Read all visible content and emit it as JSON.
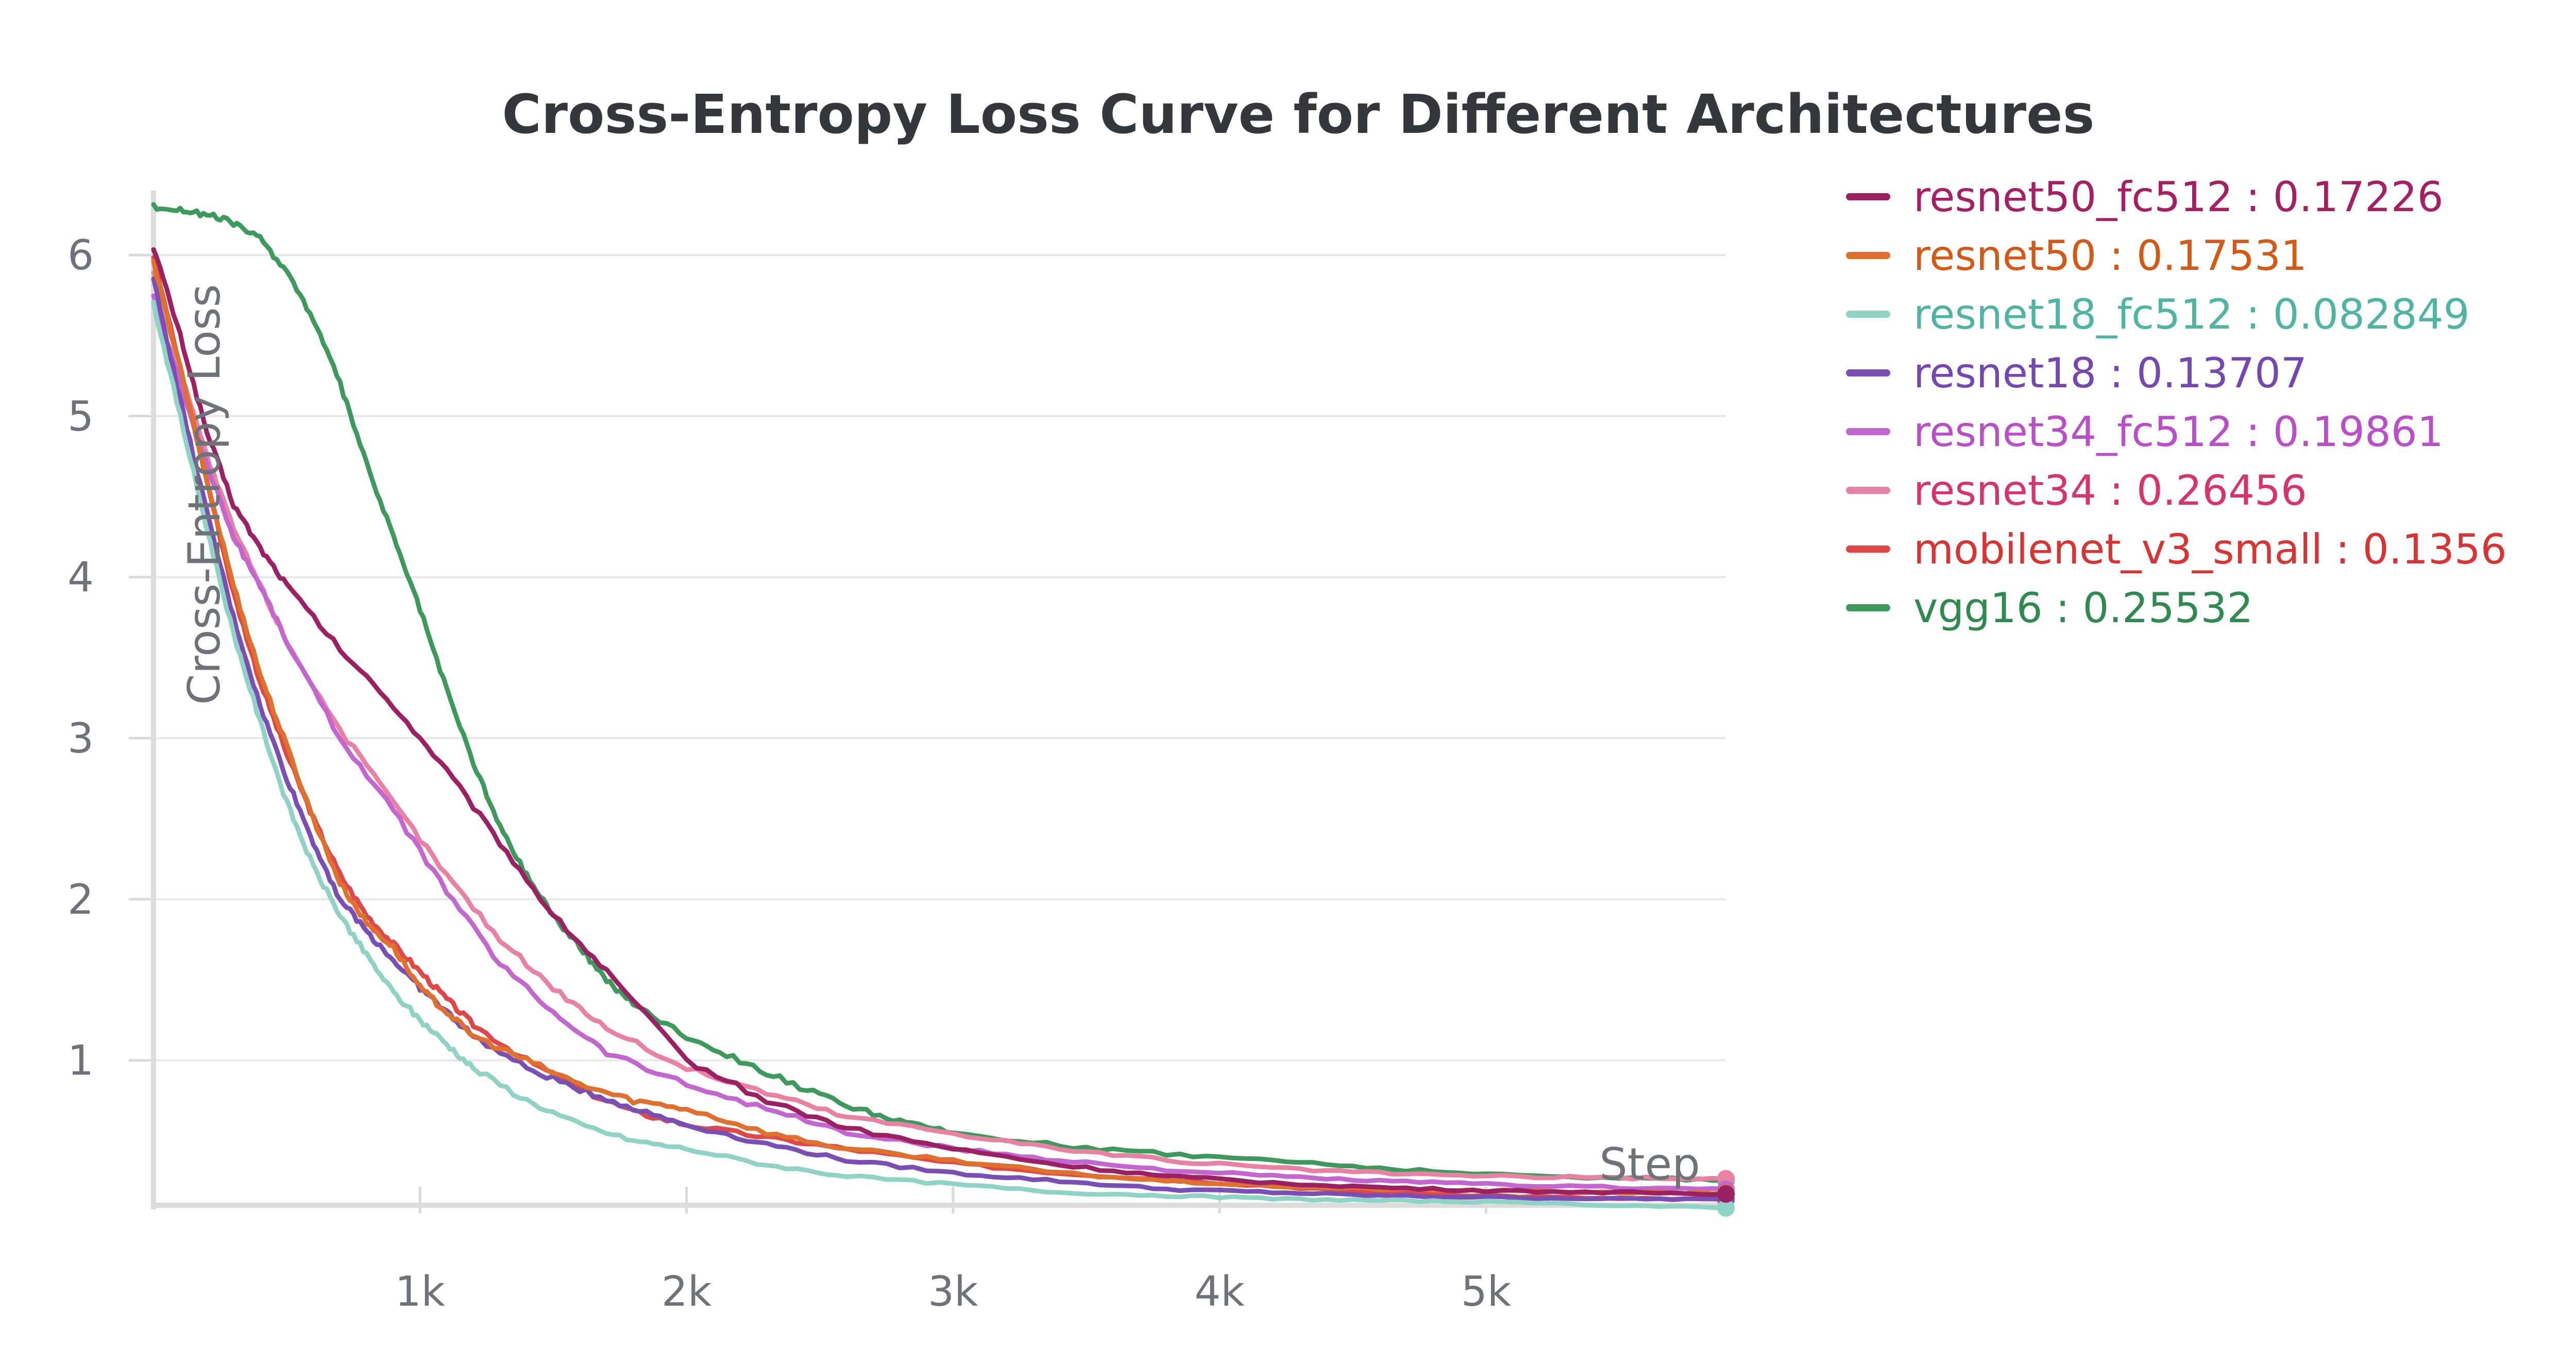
{
  "chart_data": {
    "type": "line",
    "title": "Cross-Entropy Loss Curve for Different Architectures",
    "xlabel": "Step",
    "ylabel": "Cross-Entropy Loss",
    "xlim": [
      0,
      5900
    ],
    "ylim": [
      0.1,
      6.4
    ],
    "xticks": [
      1000,
      2000,
      3000,
      4000,
      5000
    ],
    "xtick_labels": [
      "1k",
      "2k",
      "3k",
      "4k",
      "5k"
    ],
    "yticks": [
      1,
      2,
      3,
      4,
      5,
      6
    ],
    "ytick_labels": [
      "1",
      "2",
      "3",
      "4",
      "5",
      "6"
    ],
    "grid": true,
    "legend_position": "right",
    "separator": " : ",
    "series": [
      {
        "name": "resnet50_fc512",
        "final": "0.17226",
        "color": "#9c2162",
        "text_color": "#a61f63",
        "x": [
          0,
          100,
          200,
          300,
          400,
          500,
          700,
          900,
          1100,
          1300,
          1500,
          1700,
          2000,
          2300,
          2600,
          3000,
          3400,
          3800,
          4200,
          4600,
          5000,
          5500,
          5900
        ],
        "y": [
          6.05,
          5.5,
          4.9,
          4.45,
          4.18,
          3.95,
          3.55,
          3.2,
          2.8,
          2.35,
          1.9,
          1.55,
          1.0,
          0.75,
          0.58,
          0.45,
          0.35,
          0.28,
          0.24,
          0.21,
          0.19,
          0.18,
          0.17
        ]
      },
      {
        "name": "resnet50",
        "final": "0.17531",
        "color": "#e0702e",
        "text_color": "#d35a16",
        "x": [
          0,
          100,
          200,
          300,
          400,
          500,
          600,
          700,
          800,
          900,
          1000,
          1100,
          1200,
          1400,
          1600,
          1800,
          2000,
          2300,
          2600,
          3000,
          3400,
          3800,
          4200,
          4600,
          5000,
          5500,
          5900
        ],
        "y": [
          5.95,
          5.3,
          4.6,
          3.95,
          3.4,
          2.95,
          2.5,
          2.1,
          1.85,
          1.7,
          1.45,
          1.3,
          1.15,
          1.0,
          0.85,
          0.75,
          0.7,
          0.55,
          0.45,
          0.38,
          0.3,
          0.25,
          0.22,
          0.2,
          0.19,
          0.18,
          0.175
        ]
      },
      {
        "name": "resnet18_fc512",
        "final": "0.082849",
        "color": "#8fd3c4",
        "text_color": "#4fb5a3",
        "x": [
          0,
          100,
          200,
          300,
          400,
          500,
          600,
          700,
          800,
          900,
          1000,
          1100,
          1200,
          1400,
          1600,
          1800,
          2000,
          2300,
          2600,
          3000,
          3400,
          3800,
          4200,
          4600,
          5000,
          5500,
          5900
        ],
        "y": [
          5.7,
          5.0,
          4.3,
          3.65,
          3.1,
          2.6,
          2.2,
          1.9,
          1.65,
          1.42,
          1.25,
          1.1,
          0.95,
          0.75,
          0.6,
          0.5,
          0.45,
          0.35,
          0.28,
          0.23,
          0.18,
          0.16,
          0.14,
          0.13,
          0.12,
          0.1,
          0.083
        ]
      },
      {
        "name": "resnet18",
        "final": "0.13707",
        "color": "#7a4fb5",
        "text_color": "#7447b3",
        "x": [
          0,
          100,
          200,
          300,
          400,
          500,
          600,
          700,
          800,
          900,
          1000,
          1100,
          1200,
          1400,
          1600,
          1800,
          2000,
          2300,
          2600,
          3000,
          3400,
          3800,
          4200,
          4600,
          5000,
          5500,
          5900
        ],
        "y": [
          5.85,
          5.1,
          4.4,
          3.75,
          3.2,
          2.75,
          2.35,
          2.0,
          1.8,
          1.62,
          1.45,
          1.3,
          1.15,
          0.95,
          0.82,
          0.7,
          0.6,
          0.48,
          0.38,
          0.3,
          0.25,
          0.2,
          0.18,
          0.16,
          0.15,
          0.14,
          0.137
        ]
      },
      {
        "name": "resnet34_fc512",
        "final": "0.19861",
        "color": "#c366cf",
        "text_color": "#b94ec8",
        "x": [
          0,
          100,
          200,
          300,
          400,
          500,
          700,
          900,
          1100,
          1300,
          1500,
          1700,
          2000,
          2300,
          2600,
          3000,
          3400,
          3800,
          4200,
          4600,
          5000,
          5500,
          5900
        ],
        "y": [
          5.75,
          5.2,
          4.7,
          4.25,
          3.95,
          3.6,
          3.0,
          2.55,
          2.05,
          1.6,
          1.3,
          1.05,
          0.85,
          0.7,
          0.55,
          0.45,
          0.38,
          0.32,
          0.28,
          0.25,
          0.23,
          0.21,
          0.2
        ]
      },
      {
        "name": "resnet34",
        "final": "0.26456",
        "color": "#e881a2",
        "text_color": "#d8346b",
        "x": [
          0,
          100,
          200,
          300,
          400,
          500,
          700,
          900,
          1100,
          1300,
          1500,
          1700,
          2000,
          2300,
          2600,
          3000,
          3400,
          3800,
          4200,
          4600,
          5000,
          5500,
          5900
        ],
        "y": [
          5.9,
          5.3,
          4.75,
          4.3,
          3.95,
          3.6,
          3.05,
          2.6,
          2.15,
          1.75,
          1.45,
          1.2,
          0.95,
          0.8,
          0.65,
          0.55,
          0.45,
          0.38,
          0.33,
          0.3,
          0.28,
          0.27,
          0.265
        ]
      },
      {
        "name": "mobilenet_v3_small",
        "final": "0.1356",
        "color": "#df4848",
        "text_color": "#d83434",
        "x": [
          0,
          100,
          200,
          300,
          400,
          500,
          600,
          700,
          800,
          900,
          1000,
          1100,
          1200,
          1400,
          1600,
          1800,
          2000,
          2300,
          2600,
          3000,
          3400,
          3800,
          4200,
          4600,
          5000,
          5500,
          5900
        ],
        "y": [
          6.0,
          5.3,
          4.6,
          3.9,
          3.35,
          2.9,
          2.5,
          2.15,
          1.9,
          1.72,
          1.55,
          1.38,
          1.22,
          1.0,
          0.82,
          0.68,
          0.6,
          0.52,
          0.45,
          0.36,
          0.3,
          0.26,
          0.22,
          0.18,
          0.16,
          0.14,
          0.136
        ]
      },
      {
        "name": "vgg16",
        "final": "0.25532",
        "color": "#3d9a5c",
        "text_color": "#2f8a4f",
        "x": [
          0,
          100,
          200,
          300,
          400,
          500,
          600,
          700,
          800,
          900,
          1000,
          1100,
          1200,
          1300,
          1400,
          1500,
          1600,
          1700,
          1800,
          2000,
          2200,
          2400,
          2600,
          2800,
          3000,
          3400,
          3800,
          4200,
          4600,
          5000,
          5500,
          5900
        ],
        "y": [
          6.3,
          6.28,
          6.25,
          6.2,
          6.1,
          5.9,
          5.6,
          5.2,
          4.7,
          4.25,
          3.8,
          3.3,
          2.85,
          2.45,
          2.15,
          1.9,
          1.7,
          1.5,
          1.35,
          1.15,
          1.0,
          0.85,
          0.72,
          0.62,
          0.55,
          0.47,
          0.42,
          0.38,
          0.33,
          0.29,
          0.27,
          0.255
        ]
      }
    ]
  }
}
